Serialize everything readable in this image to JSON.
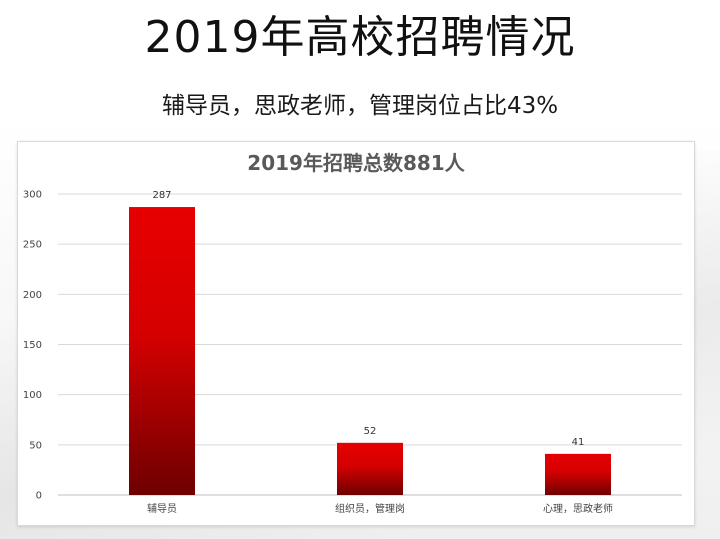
{
  "slide": {
    "title": "2019年高校招聘情况",
    "subtitle": "辅导员，思政老师，管理岗位占比43%"
  },
  "colors": {
    "bar_top": "#e60000",
    "bar_bottom": "#6e0000",
    "grid": "#d9d9d9",
    "axis": "#bfbfbf"
  },
  "chart_data": {
    "type": "bar",
    "title": "2019年招聘总数881人",
    "categories": [
      "辅导员",
      "组织员，管理岗",
      "心理，思政老师"
    ],
    "values": [
      287,
      52,
      41
    ],
    "data_labels": [
      "287",
      "52",
      "41"
    ],
    "ylim": [
      0,
      300
    ],
    "yticks": [
      "0",
      "50",
      "100",
      "150",
      "200",
      "250",
      "300"
    ],
    "ytick_values": [
      0,
      50,
      100,
      150,
      200,
      250,
      300
    ],
    "xlabel": "",
    "ylabel": "",
    "grid": true,
    "legend": "none"
  }
}
